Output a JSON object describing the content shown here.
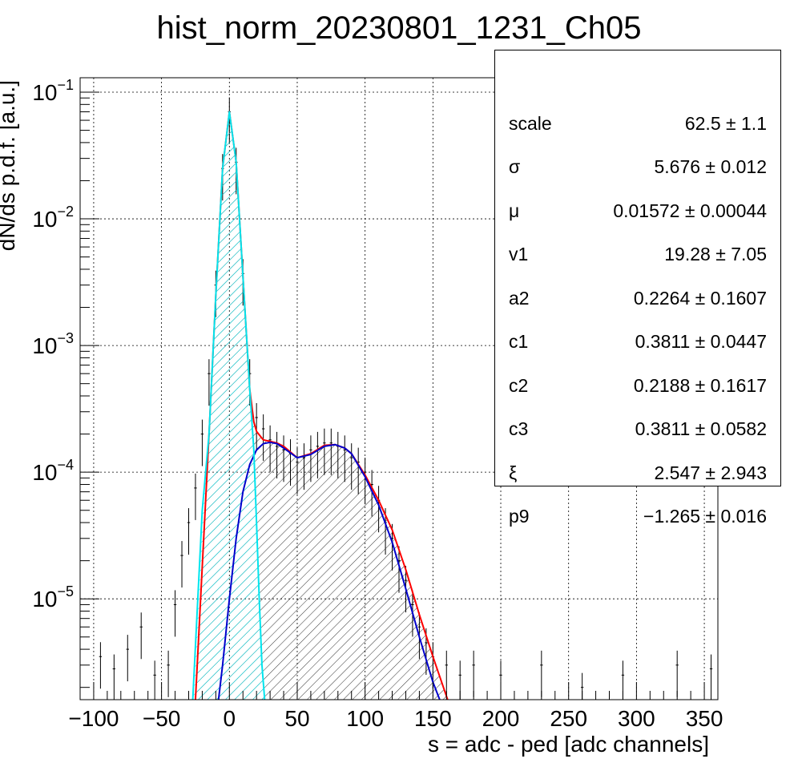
{
  "chart_data": {
    "type": "line",
    "title": "hist_norm_20230801_1231_Ch05",
    "xlabel": "s = adc - ped [adc channels]",
    "ylabel": "dN/ds p.d.f. [a.u.]",
    "xlim": [
      -110,
      360
    ],
    "ylim": [
      1.6e-06,
      0.13
    ],
    "yscale": "log",
    "grid": true,
    "x_ticks": [
      -100,
      -50,
      0,
      50,
      100,
      150,
      200,
      250,
      300,
      350
    ],
    "x_tick_labels": [
      "−100",
      "−50",
      "0",
      "50",
      "100",
      "150",
      "200",
      "250",
      "300",
      "350"
    ],
    "y_ticks": [
      1e-05,
      0.0001,
      0.001,
      0.01,
      0.1
    ],
    "y_tick_labels": [
      {
        "base": "10",
        "exp": "−5"
      },
      {
        "base": "10",
        "exp": "−4"
      },
      {
        "base": "10",
        "exp": "−3"
      },
      {
        "base": "10",
        "exp": "−2"
      },
      {
        "base": "10",
        "exp": "−1"
      }
    ],
    "series": [
      {
        "color": "#ff0000",
        "x": [
          -25,
          -15,
          -10,
          -5,
          0,
          5,
          10,
          15,
          18,
          20,
          25,
          30,
          35,
          40,
          50,
          60,
          70,
          78,
          85,
          90,
          100,
          110,
          120,
          130,
          140,
          150,
          160,
          165
        ],
        "y": [
          1.6e-06,
          0.0002,
          0.0025,
          0.025,
          0.07,
          0.028,
          0.0035,
          0.00045,
          0.00025,
          0.00021,
          0.00018,
          0.000175,
          0.00017,
          0.00016,
          0.00013,
          0.00014,
          0.000163,
          0.000165,
          0.000155,
          0.00014,
          9.5e-05,
          6e-05,
          3.5e-05,
          1.7e-05,
          7.5e-06,
          3.5e-06,
          1.7e-06,
          1.2e-06
        ]
      },
      {
        "color": "#0000cc",
        "x": [
          -8,
          -5,
          0,
          5,
          10,
          15,
          20,
          25,
          30,
          35,
          40,
          50,
          60,
          70,
          78,
          85,
          90,
          100,
          110,
          120,
          130,
          140,
          150,
          155,
          158
        ],
        "y": [
          1.6e-06,
          3e-06,
          1e-05,
          3e-05,
          7e-05,
          0.000115,
          0.00015,
          0.000168,
          0.000172,
          0.000168,
          0.000155,
          0.00013,
          0.000138,
          0.00016,
          0.000165,
          0.000155,
          0.00014,
          9.2e-05,
          5.5e-05,
          2.8e-05,
          1.2e-05,
          5e-06,
          2.2e-06,
          1.6e-06,
          1.2e-06
        ]
      },
      {
        "color": "#00e5ee",
        "x": [
          -27,
          -20,
          -15,
          -10,
          -5,
          0,
          5,
          10,
          15,
          18,
          20,
          22,
          24,
          26
        ],
        "y": [
          1.6e-06,
          5e-05,
          0.0002,
          0.0025,
          0.025,
          0.07,
          0.028,
          0.0035,
          0.00045,
          0.00015,
          4e-05,
          1e-05,
          3e-06,
          1.6e-06
        ]
      }
    ],
    "histogram": {
      "color": "#000000",
      "bin_width": 1,
      "x": [
        -95,
        -85,
        -75,
        -65,
        -55,
        -45,
        -40,
        -35,
        -30,
        -25,
        -20,
        -15,
        -10,
        -5,
        0,
        5,
        10,
        15,
        20,
        25,
        30,
        35,
        40,
        45,
        50,
        55,
        60,
        65,
        70,
        75,
        80,
        85,
        90,
        95,
        100,
        105,
        110,
        115,
        120,
        125,
        130,
        135,
        140,
        145,
        150,
        160,
        170,
        180,
        200,
        230,
        260,
        290,
        330,
        355
      ],
      "y": [
        3.5e-06,
        2.8e-06,
        4e-06,
        6e-06,
        2.5e-06,
        3e-06,
        9e-06,
        2.2e-05,
        4e-05,
        7.5e-05,
        0.0002,
        0.0006,
        0.003,
        0.025,
        0.07,
        0.028,
        0.0037,
        0.0006,
        0.00027,
        0.00022,
        0.00018,
        0.00016,
        0.00015,
        0.00014,
        0.00012,
        0.00013,
        0.00015,
        0.00016,
        0.00017,
        0.00017,
        0.00016,
        0.00015,
        0.00013,
        0.00012,
        0.0001,
        8e-05,
        6e-05,
        4e-05,
        3e-05,
        2e-05,
        1.4e-05,
        9e-06,
        6e-06,
        4.5e-06,
        3.5e-06,
        3e-06,
        2.5e-06,
        3e-06,
        2.5e-06,
        3e-06,
        2e-06,
        2.5e-06,
        3e-06,
        2.8e-06
      ]
    },
    "stats": [
      {
        "name": "scale",
        "value": "62.5 ± 1.1"
      },
      {
        "name": "σ",
        "value": "5.676 ± 0.012"
      },
      {
        "name": "μ",
        "value": "0.01572 ± 0.00044"
      },
      {
        "name": "v1",
        "value": "19.28 ± 7.05"
      },
      {
        "name": "a2",
        "value": "0.2264 ± 0.1607"
      },
      {
        "name": "c1",
        "value": "0.3811 ± 0.0447"
      },
      {
        "name": "c2",
        "value": "0.2188 ± 0.1617"
      },
      {
        "name": "c3",
        "value": "0.3811 ± 0.0582"
      },
      {
        "name": "ξ",
        "value": "2.547 ± 2.943"
      },
      {
        "name": "p9",
        "value": "−1.265 ± 0.016"
      }
    ]
  }
}
